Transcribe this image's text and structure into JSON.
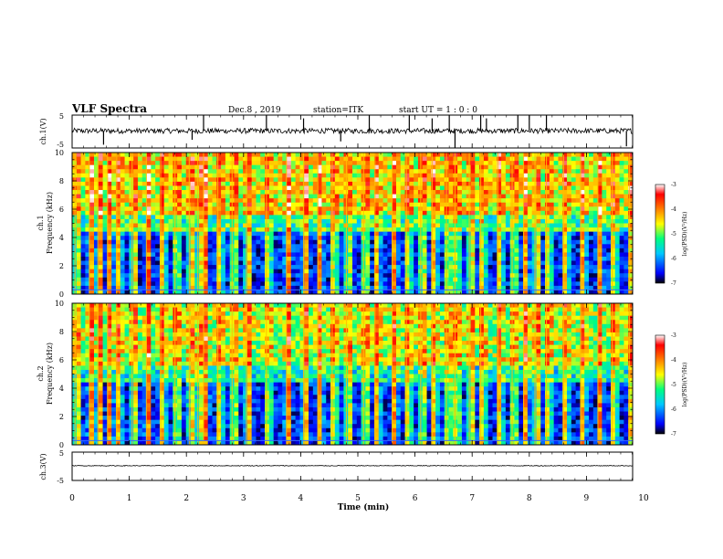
{
  "header": {
    "title": "VLF Spectra",
    "date": "Dec.8 , 2019",
    "station": "station=ITK",
    "start": "start UT =  1 : 0  : 0"
  },
  "chart_data": [
    {
      "type": "line",
      "panel": "ch1-waveform",
      "ylabel": "ch.1(V)",
      "ylim": [
        -5,
        5
      ],
      "yticks": [
        "5",
        "-5"
      ],
      "xlim": [
        0,
        10
      ],
      "baseline": 0.2,
      "spikes": [
        {
          "t": 2.3,
          "v": 5
        },
        {
          "t": 3.4,
          "v": 5
        },
        {
          "t": 4.05,
          "v": 4
        },
        {
          "t": 5.2,
          "v": 5
        },
        {
          "t": 5.9,
          "v": 5
        },
        {
          "t": 6.3,
          "v": 4
        },
        {
          "t": 6.6,
          "v": 5
        },
        {
          "t": 7.15,
          "v": 5
        },
        {
          "t": 7.25,
          "v": 4
        },
        {
          "t": 7.8,
          "v": 5
        },
        {
          "t": 8.0,
          "v": 5
        },
        {
          "t": 8.3,
          "v": 5
        },
        {
          "t": 0.55,
          "v": -4
        },
        {
          "t": 2.1,
          "v": -2.5
        },
        {
          "t": 4.7,
          "v": -3
        },
        {
          "t": 6.7,
          "v": -5
        },
        {
          "t": 9.7,
          "v": -4.5
        }
      ]
    },
    {
      "type": "heatmap",
      "panel": "ch1-spectrogram",
      "ylabel": [
        "ch.1",
        "Frequency (kHz)"
      ],
      "ylim": [
        0,
        10
      ],
      "yticks": [
        "0",
        "2",
        "4",
        "6",
        "8",
        "10"
      ],
      "xlim": [
        0,
        10
      ],
      "colorbar": {
        "label": "log(PSD)(V²/Hz)",
        "range": [
          -7,
          -3
        ],
        "ticks": [
          "-3",
          "-4",
          "-5",
          "-6",
          "-7"
        ],
        "colors": [
          "#000000",
          "#0000ff",
          "#00c8ff",
          "#00ff80",
          "#ffff00",
          "#ff8000",
          "#ff0000",
          "#ffffff"
        ]
      },
      "quiet_top_khz": 4.3,
      "active_level": -4.6,
      "quiet_level": -6.9,
      "sferic_times": [
        0.05,
        0.3,
        0.45,
        0.62,
        0.78,
        1.05,
        1.3,
        1.55,
        1.8,
        2.05,
        2.2,
        2.3,
        2.55,
        2.8,
        3.05,
        3.4,
        3.75,
        4.05,
        4.3,
        4.55,
        4.8,
        5.1,
        5.3,
        5.6,
        5.85,
        6.1,
        6.3,
        6.55,
        6.7,
        6.95,
        7.15,
        7.45,
        7.7,
        7.9,
        8.1,
        8.3,
        8.6,
        8.9,
        9.2,
        9.45,
        9.75
      ]
    },
    {
      "type": "heatmap",
      "panel": "ch2-spectrogram",
      "ylabel": [
        "ch.2",
        "Frequency (kHz)"
      ],
      "ylim": [
        0,
        10
      ],
      "yticks": [
        "0",
        "2",
        "4",
        "6",
        "8",
        "10"
      ],
      "xlim": [
        0,
        10
      ],
      "colorbar": {
        "label": "log(PSD)(V²/Hz)",
        "range": [
          -7,
          -3
        ],
        "ticks": [
          "-3",
          "-4",
          "-5",
          "-6",
          "-7"
        ],
        "colors": [
          "#000000",
          "#0000ff",
          "#00c8ff",
          "#00ff80",
          "#ffff00",
          "#ff8000",
          "#ff0000",
          "#ffffff"
        ]
      },
      "quiet_top_khz": 4.5,
      "active_level": -4.8,
      "quiet_level": -6.9,
      "sferic_times": [
        0.05,
        0.3,
        0.45,
        0.62,
        0.78,
        1.05,
        1.3,
        1.55,
        1.8,
        2.05,
        2.2,
        2.3,
        2.55,
        2.8,
        3.05,
        3.4,
        3.75,
        4.05,
        4.3,
        4.55,
        4.8,
        5.1,
        5.3,
        5.6,
        5.85,
        6.1,
        6.3,
        6.55,
        6.7,
        6.95,
        7.15,
        7.45,
        7.7,
        7.9,
        8.1,
        8.3,
        8.6,
        8.9,
        9.2,
        9.45,
        9.75
      ]
    },
    {
      "type": "line",
      "panel": "ch3-waveform",
      "ylabel": "ch.3(V)",
      "ylim": [
        -5,
        5
      ],
      "yticks": [
        "5",
        "-5"
      ],
      "xlim": [
        0,
        10
      ],
      "baseline": 0.2,
      "xlabel": "Time (min)",
      "xticks": [
        "0",
        "1",
        "2",
        "3",
        "4",
        "5",
        "6",
        "7",
        "8",
        "9",
        "10"
      ]
    }
  ]
}
